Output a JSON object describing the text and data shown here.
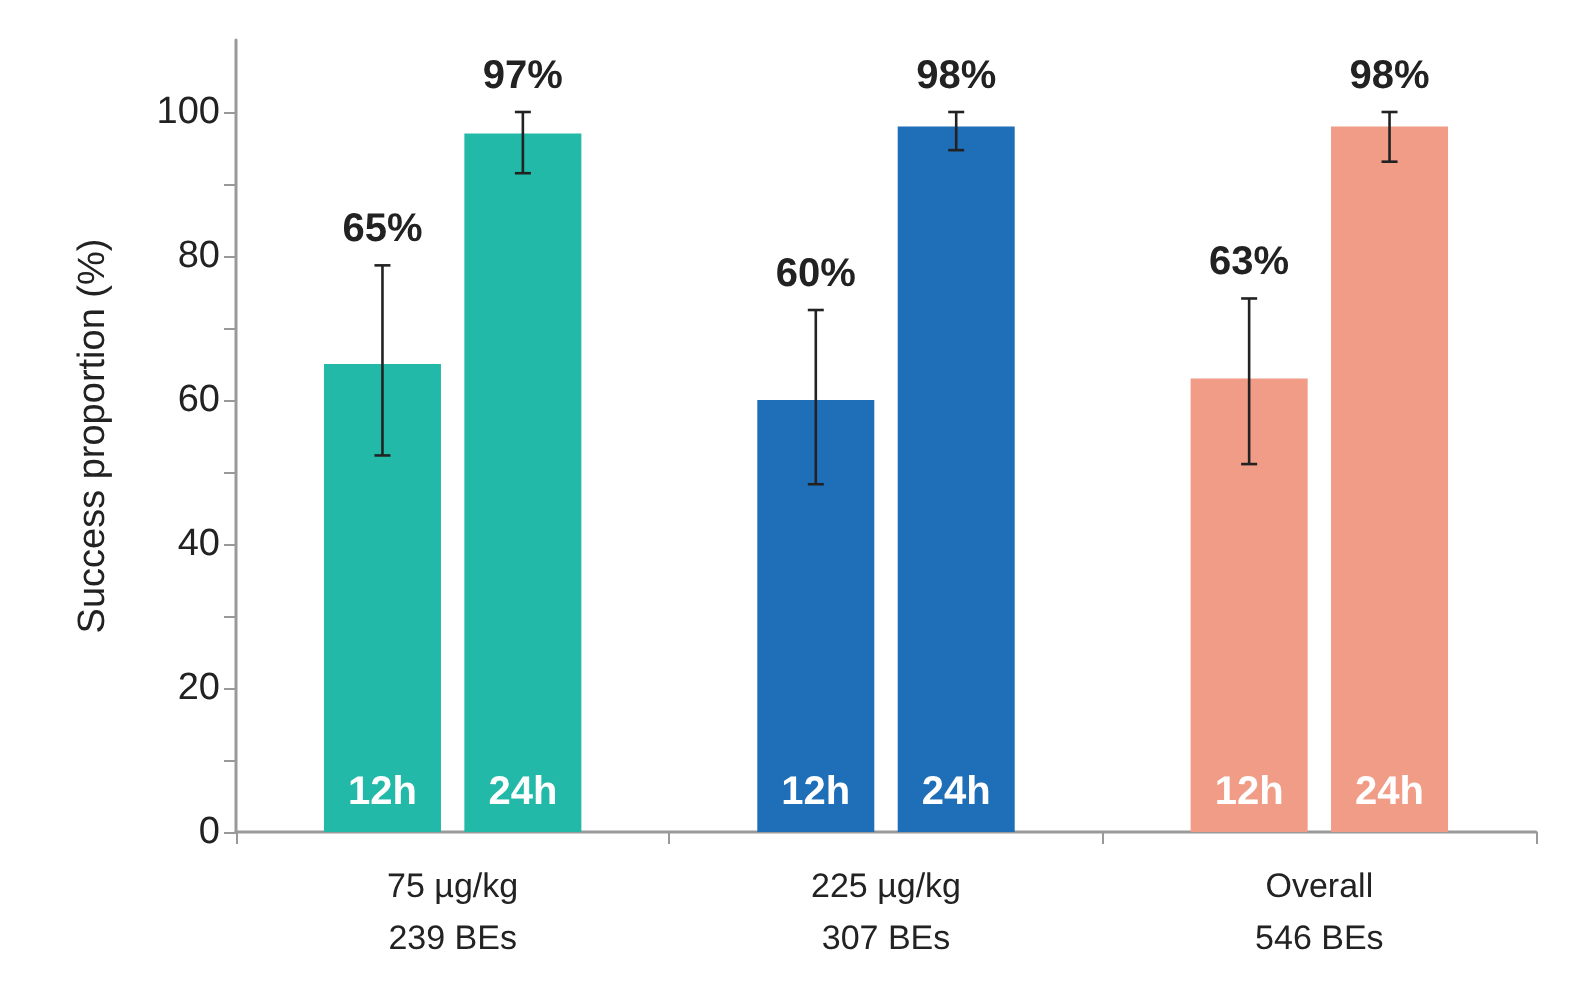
{
  "chart_data": {
    "type": "bar",
    "ylabel": "Success proportion (%)",
    "categories": [
      "75 µg/kg\n239 BEs",
      "225 µg/kg\n307 BEs",
      "Overall\n546 BEs"
    ],
    "series": [
      {
        "name": "12h",
        "colors": [
          "#22b9a8",
          "#1f6eb8",
          "#f09c86"
        ],
        "values": [
          65,
          60,
          63
        ],
        "errors": [
          [
            52.3,
            78.7
          ],
          [
            48.3,
            72.5
          ],
          [
            51.1,
            74.1
          ]
        ],
        "value_labels": [
          "65%",
          "60%",
          "63%"
        ]
      },
      {
        "name": "24h",
        "colors": [
          "#22b9a8",
          "#1f6eb8",
          "#f09c86"
        ],
        "values": [
          97,
          98,
          98
        ],
        "errors": [
          [
            91.5,
            100
          ],
          [
            94.7,
            100
          ],
          [
            93.1,
            100
          ]
        ],
        "value_labels": [
          "97%",
          "98%",
          "98%"
        ]
      }
    ],
    "ylim": [
      0,
      110
    ],
    "yticks": [
      0,
      {
        "value": 10,
        "label": null
      },
      20,
      {
        "value": 30,
        "label": null
      },
      40,
      {
        "value": 50,
        "label": null
      },
      60,
      {
        "value": 70,
        "label": null
      },
      80,
      {
        "value": 90,
        "label": null
      },
      100
    ]
  }
}
